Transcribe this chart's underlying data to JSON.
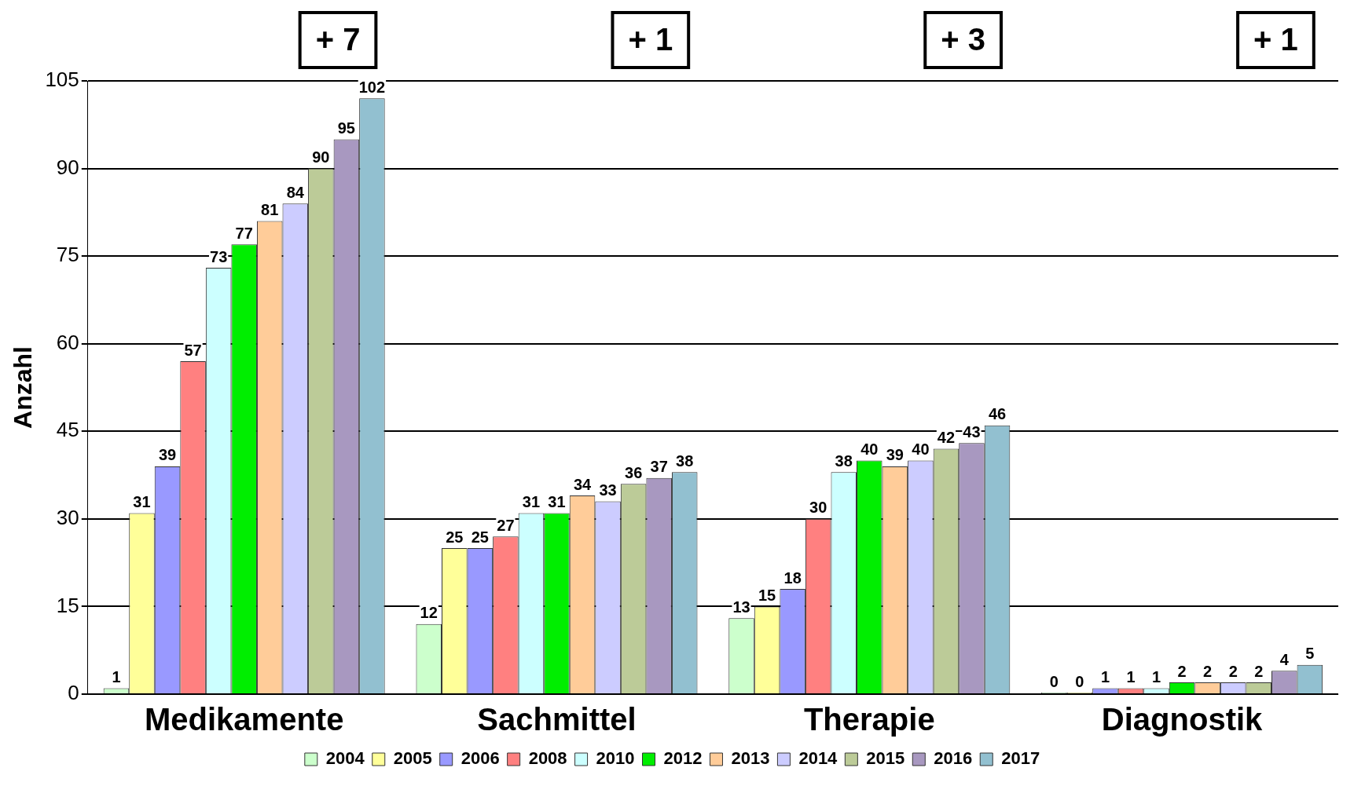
{
  "chart_data": {
    "type": "bar",
    "ylabel": "Anzahl",
    "categories": [
      "Medikamente",
      "Sachmittel",
      "Therapie",
      "Diagnostik"
    ],
    "series": [
      {
        "name": "2004",
        "color": "#ccffcc",
        "values": [
          1,
          12,
          13,
          0
        ]
      },
      {
        "name": "2005",
        "color": "#ffff99",
        "values": [
          31,
          25,
          15,
          0
        ]
      },
      {
        "name": "2006",
        "color": "#9999ff",
        "values": [
          39,
          25,
          18,
          1
        ]
      },
      {
        "name": "2008",
        "color": "#ff8080",
        "values": [
          57,
          27,
          30,
          1
        ]
      },
      {
        "name": "2010",
        "color": "#ccffff",
        "values": [
          73,
          31,
          38,
          1
        ]
      },
      {
        "name": "2012",
        "color": "#00ee00",
        "values": [
          77,
          31,
          40,
          2
        ]
      },
      {
        "name": "2013",
        "color": "#ffcc99",
        "values": [
          81,
          34,
          39,
          2
        ]
      },
      {
        "name": "2014",
        "color": "#ccccff",
        "values": [
          84,
          33,
          40,
          2
        ]
      },
      {
        "name": "2015",
        "color": "#bccb98",
        "values": [
          90,
          36,
          42,
          2
        ]
      },
      {
        "name": "2016",
        "color": "#a898c0",
        "values": [
          95,
          37,
          43,
          4
        ]
      },
      {
        "name": "2017",
        "color": "#92c0d0",
        "values": [
          102,
          38,
          46,
          5
        ]
      }
    ],
    "ylim": [
      0,
      105
    ],
    "yticks": [
      0,
      15,
      30,
      45,
      60,
      75,
      90,
      105
    ],
    "grid": "y",
    "legend": "bottom",
    "data_labels": true,
    "annotations": [
      "+ 7",
      "+ 1",
      "+ 3",
      "+ 1"
    ]
  }
}
